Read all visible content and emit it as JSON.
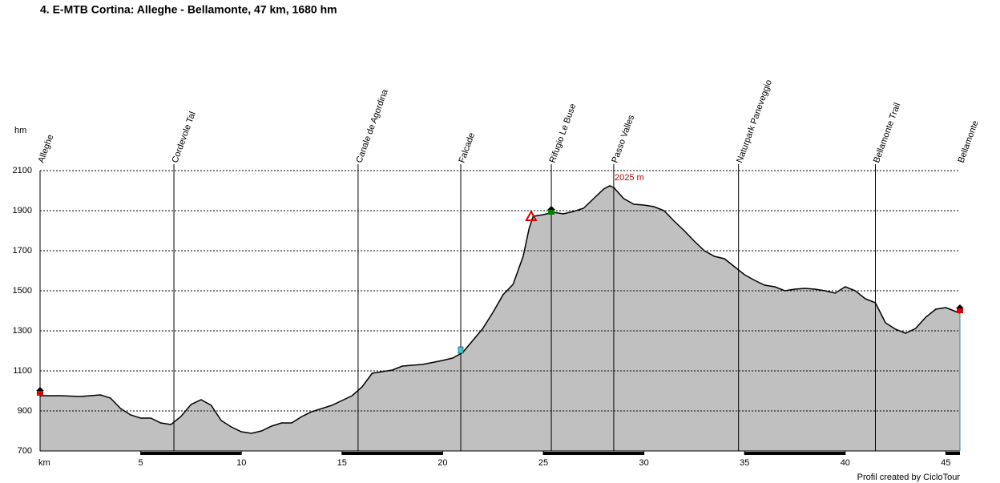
{
  "chart_data": {
    "type": "area",
    "title": "4. E-MTB Cortina: Alleghe - Bellamonte, 47 km, 1680 hm",
    "y_label": "hm",
    "x_label": "km",
    "footer": "Profil created by CicloTour",
    "annotation": "2025 m",
    "fill": "#c0c0c0",
    "line_color": "#000000",
    "grid": true,
    "xlim": [
      0,
      45.7
    ],
    "ylim": [
      700,
      2100
    ],
    "xticks": [
      5,
      10,
      15,
      20,
      25,
      30,
      35,
      40,
      45
    ],
    "yticks": [
      700,
      900,
      1100,
      1300,
      1500,
      1700,
      1900,
      2100
    ],
    "x": [
      0,
      1,
      2,
      3,
      3.5,
      4,
      4.5,
      5,
      5.5,
      6,
      6.5,
      7,
      7.5,
      8,
      8.5,
      9,
      9.5,
      10,
      10.5,
      11,
      11.5,
      12,
      12.5,
      13,
      13.5,
      14,
      14.5,
      15,
      15.5,
      16,
      16.5,
      17,
      17.5,
      18,
      19,
      20,
      20.5,
      21,
      21.5,
      22,
      22.5,
      23,
      23.5,
      24,
      24.3,
      24.5,
      25,
      25.5,
      26,
      26.5,
      27,
      27.5,
      28,
      28.3,
      28.5,
      29,
      29.5,
      30,
      30.5,
      31,
      31.5,
      32,
      32.5,
      33,
      33.5,
      34,
      34.5,
      35,
      35.5,
      36,
      36.5,
      37,
      37.5,
      38,
      38.5,
      39,
      39.5,
      40,
      40.5,
      41,
      41.5,
      42,
      42.5,
      43,
      43.5,
      44,
      44.5,
      45,
      45.7
    ],
    "values": [
      976,
      976,
      972,
      980,
      964,
      912,
      880,
      864,
      864,
      840,
      832,
      872,
      932,
      956,
      928,
      852,
      820,
      796,
      788,
      800,
      824,
      840,
      840,
      872,
      896,
      912,
      928,
      952,
      976,
      1020,
      1088,
      1096,
      1104,
      1124,
      1132,
      1152,
      1164,
      1192,
      1252,
      1312,
      1392,
      1480,
      1532,
      1672,
      1812,
      1872,
      1880,
      1892,
      1884,
      1896,
      1912,
      1960,
      2008,
      2024,
      2016,
      1960,
      1932,
      1928,
      1920,
      1900,
      1848,
      1800,
      1748,
      1700,
      1672,
      1660,
      1620,
      1580,
      1552,
      1528,
      1520,
      1500,
      1508,
      1512,
      1508,
      1500,
      1488,
      1520,
      1500,
      1460,
      1440,
      1340,
      1308,
      1288,
      1312,
      1368,
      1408,
      1416,
      1388
    ],
    "waypoints": {
      "names": [
        "Alleghe",
        "Cordevole Tal",
        "Canale de Agordina",
        "Falcade",
        "Rifugio Le Buse",
        "Passo Valles",
        "Naturpark Paneveggio",
        "Bellamonte Trail",
        "Bellamonte"
      ],
      "x": [
        0,
        6.65,
        15.8,
        20.9,
        25.4,
        28.5,
        34.7,
        41.5,
        45.7
      ]
    }
  }
}
